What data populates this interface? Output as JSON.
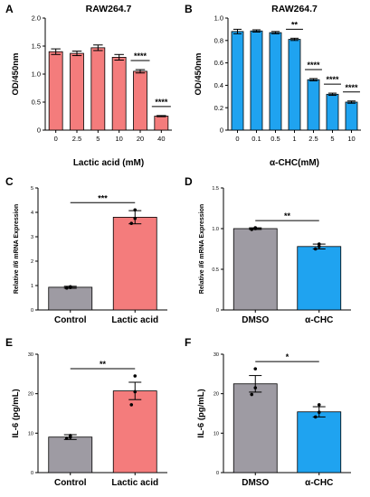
{
  "figure": {
    "panels": [
      "A",
      "B",
      "C",
      "D",
      "E",
      "F"
    ]
  },
  "colors": {
    "red": "#f47c7c",
    "blue": "#1fa3f0",
    "gray": "#9e9ba3",
    "axis": "#000000"
  },
  "chart_data": [
    {
      "panel": "A",
      "type": "bar",
      "title": "RAW264.7",
      "xlabel": "Lactic acid (mM)",
      "ylabel": "OD/450nm",
      "categories": [
        "0",
        "2.5",
        "5",
        "10",
        "20",
        "40"
      ],
      "values": [
        1.4,
        1.37,
        1.47,
        1.3,
        1.05,
        0.25
      ],
      "errors": [
        0.05,
        0.04,
        0.05,
        0.05,
        0.03,
        0.01
      ],
      "colors": [
        "red",
        "red",
        "red",
        "red",
        "red",
        "red"
      ],
      "ylim": [
        0,
        2.0
      ],
      "yticks": [
        "0",
        "0.5",
        "1.0",
        "1.5",
        "2.0"
      ],
      "annotations": [
        {
          "text": "****",
          "from": 4,
          "to": 4
        },
        {
          "text": "****",
          "from": 5,
          "to": 5
        }
      ]
    },
    {
      "panel": "B",
      "type": "bar",
      "title": "RAW264.7",
      "xlabel": "α-CHC(mM)",
      "ylabel": "OD/450nm",
      "categories": [
        "0",
        "0.1",
        "0.5",
        "1",
        "2.5",
        "5",
        "10"
      ],
      "values": [
        0.88,
        0.885,
        0.87,
        0.81,
        0.45,
        0.32,
        0.25
      ],
      "errors": [
        0.02,
        0.01,
        0.01,
        0.01,
        0.01,
        0.01,
        0.01
      ],
      "colors": [
        "blue",
        "blue",
        "blue",
        "blue",
        "blue",
        "blue",
        "blue"
      ],
      "ylim": [
        0,
        1.0
      ],
      "yticks": [
        "0",
        "0.2",
        "0.4",
        "0.6",
        "0.8",
        "1.0"
      ],
      "annotations": [
        {
          "text": "**",
          "from": 3,
          "to": 3
        },
        {
          "text": "****",
          "from": 4,
          "to": 4
        },
        {
          "text": "****",
          "from": 5,
          "to": 5
        },
        {
          "text": "****",
          "from": 6,
          "to": 6
        }
      ]
    },
    {
      "panel": "C",
      "type": "bar",
      "ylabel_parts": [
        "Relative ",
        "Il6",
        " mRNA Expression"
      ],
      "categories": [
        "Control",
        "Lactic acid"
      ],
      "values": [
        0.93,
        3.8
      ],
      "errors": [
        0.04,
        0.27
      ],
      "points": [
        [
          0.9,
          0.95,
          0.92
        ],
        [
          3.55,
          3.75,
          4.1
        ]
      ],
      "colors": [
        "gray",
        "red"
      ],
      "ylim": [
        0,
        5
      ],
      "yticks": [
        "0",
        "1",
        "2",
        "3",
        "4",
        "5"
      ],
      "annotations": [
        {
          "text": "***",
          "from": 0,
          "to": 1
        }
      ]
    },
    {
      "panel": "D",
      "type": "bar",
      "ylabel_parts": [
        "Relative ",
        "Il6",
        " mRNA Expression"
      ],
      "categories": [
        "DMSO",
        "α-CHC"
      ],
      "values": [
        1.0,
        0.78
      ],
      "errors": [
        0.01,
        0.03
      ],
      "points": [
        [
          0.99,
          1.0,
          1.01
        ],
        [
          0.75,
          0.78,
          0.81
        ]
      ],
      "colors": [
        "gray",
        "blue"
      ],
      "ylim": [
        0,
        1.5
      ],
      "yticks": [
        "0",
        "0.5",
        "1.0",
        "1.5"
      ],
      "annotations": [
        {
          "text": "**",
          "from": 0,
          "to": 1
        }
      ]
    },
    {
      "panel": "E",
      "type": "bar",
      "ylabel": "IL-6 (pg/mL)",
      "categories": [
        "Control",
        "Lactic acid"
      ],
      "values": [
        9.0,
        20.7
      ],
      "errors": [
        0.6,
        2.2
      ],
      "points": [
        [
          8.7,
          9.0,
          9.4
        ],
        [
          17.2,
          20.5,
          24.5
        ]
      ],
      "colors": [
        "gray",
        "red"
      ],
      "ylim": [
        0,
        30
      ],
      "yticks": [
        "0",
        "10",
        "20",
        "30"
      ],
      "annotations": [
        {
          "text": "**",
          "from": 0,
          "to": 1
        }
      ]
    },
    {
      "panel": "F",
      "type": "bar",
      "ylabel": "IL-6 (pg/mL)",
      "categories": [
        "DMSO",
        "α-CHC"
      ],
      "values": [
        22.5,
        15.4
      ],
      "errors": [
        2.1,
        1.3
      ],
      "points": [
        [
          19.8,
          21.5,
          26.3
        ],
        [
          14.1,
          15.3,
          17.2
        ]
      ],
      "colors": [
        "gray",
        "blue"
      ],
      "ylim": [
        0,
        30
      ],
      "yticks": [
        "0",
        "10",
        "20",
        "30"
      ],
      "annotations": [
        {
          "text": "*",
          "from": 0,
          "to": 1
        }
      ]
    }
  ]
}
